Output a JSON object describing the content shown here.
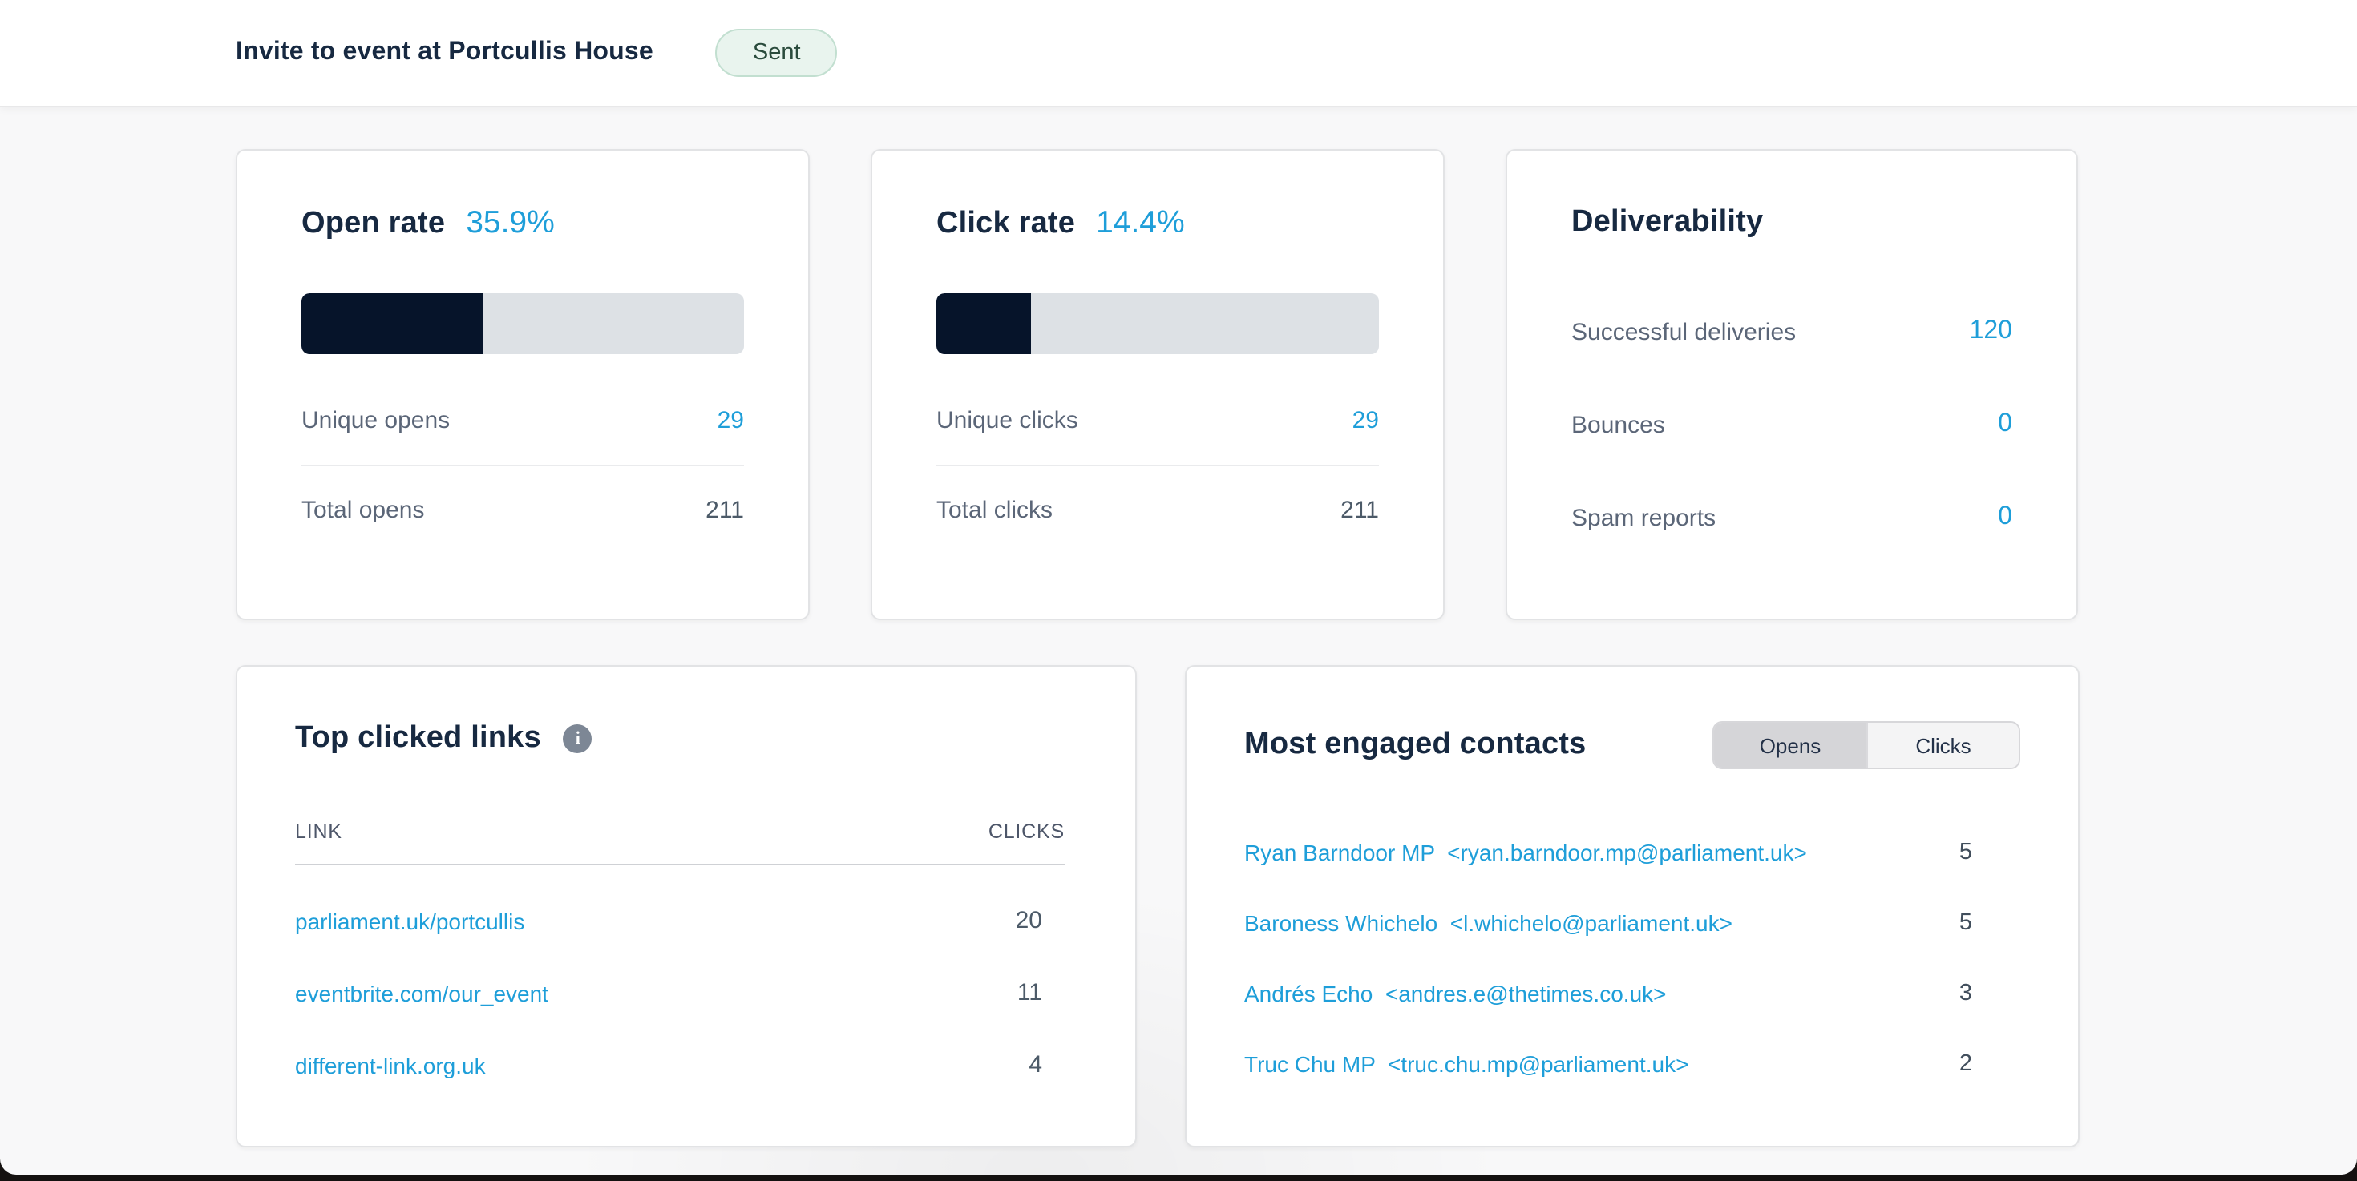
{
  "header": {
    "title": "Invite to event at Portcullis House",
    "status": "Sent"
  },
  "cards": {
    "open_rate": {
      "title": "Open rate",
      "value": "35.9%",
      "bar_width": "41%",
      "rows": [
        {
          "label": "Unique opens",
          "value": "29"
        },
        {
          "label": "Total opens",
          "value": "211"
        }
      ]
    },
    "click_rate": {
      "title": "Click rate",
      "value": "14.4%",
      "bar_width": "21.5%",
      "rows": [
        {
          "label": "Unique clicks",
          "value": "29"
        },
        {
          "label": "Total clicks",
          "value": "211"
        }
      ]
    },
    "deliverability": {
      "title": "Deliverability",
      "rows": [
        {
          "label": "Successful deliveries",
          "value": "120"
        },
        {
          "label": "Bounces",
          "value": "0"
        },
        {
          "label": "Spam reports",
          "value": "0"
        }
      ]
    },
    "top_links": {
      "title": "Top clicked links",
      "info_icon": "info-icon",
      "columns": {
        "link": "LINK",
        "clicks": "CLICKS"
      },
      "rows": [
        {
          "link": "parliament.uk/portcullis",
          "clicks": "20"
        },
        {
          "link": "eventbrite.com/our_event",
          "clicks": "11"
        },
        {
          "link": "different-link.org.uk",
          "clicks": "4"
        }
      ]
    },
    "contacts": {
      "title": "Most engaged contacts",
      "tabs": [
        {
          "label": "Opens",
          "active": true
        },
        {
          "label": "Clicks",
          "active": false
        }
      ],
      "rows": [
        {
          "contact": "Ryan Barndoor MP  <ryan.barndoor.mp@parliament.uk>",
          "value": "5"
        },
        {
          "contact": "Baroness Whichelo  <l.whichelo@parliament.uk>",
          "value": "5"
        },
        {
          "contact": "Andrés Echo  <andres.e@thetimes.co.uk>",
          "value": "3"
        },
        {
          "contact": "Truc Chu MP  <truc.chu.mp@parliament.uk>",
          "value": "2"
        }
      ]
    }
  },
  "colors": {
    "accent": "#1e9ed9",
    "navy": "#172941",
    "bar-fill": "#06142a",
    "bar-track": "#dde1e5",
    "badge-bg": "#e9f4ee",
    "badge-border": "#c2dfd0",
    "badge-text": "#2a4b3c"
  }
}
